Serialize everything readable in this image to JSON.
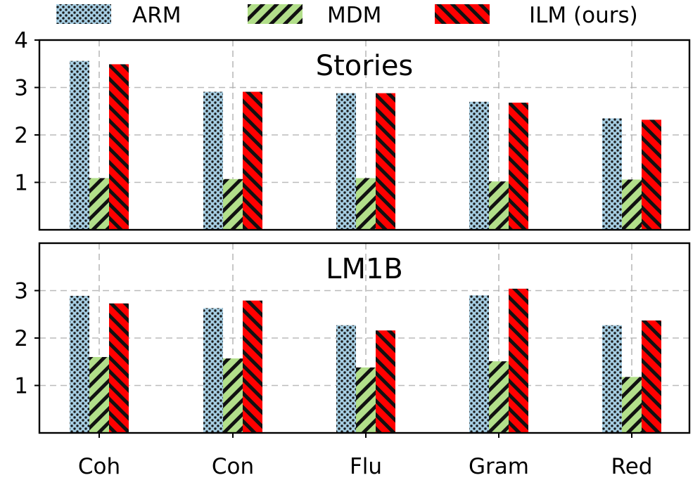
{
  "chart_data": {
    "type": "bar",
    "categories": [
      "Coh",
      "Con",
      "Flu",
      "Gram",
      "Red"
    ],
    "legend": [
      {
        "name": "ARM",
        "color": "#a6cee3",
        "pattern": "dots"
      },
      {
        "name": "MDM",
        "color": "#b2df8a",
        "pattern": "backslash"
      },
      {
        "name": "ILM (ours)",
        "color": "#ff0000",
        "pattern": "slash"
      }
    ],
    "panels": [
      {
        "title": "Stories",
        "ylim": [
          0,
          4
        ],
        "yticks": [
          1,
          2,
          3,
          4
        ],
        "ytick_labels": [
          "1",
          "2",
          "3",
          "4"
        ],
        "series": [
          {
            "name": "ARM",
            "values": [
              3.56,
              2.91,
              2.88,
              2.7,
              2.35
            ]
          },
          {
            "name": "MDM",
            "values": [
              1.09,
              1.07,
              1.09,
              1.02,
              1.06
            ]
          },
          {
            "name": "ILM (ours)",
            "values": [
              3.49,
              2.91,
              2.88,
              2.68,
              2.32
            ]
          }
        ]
      },
      {
        "title": "LM1B",
        "ylim": [
          0,
          4
        ],
        "yticks": [
          1,
          2,
          3
        ],
        "ytick_labels": [
          "1",
          "2",
          "3"
        ],
        "series": [
          {
            "name": "ARM",
            "values": [
              2.89,
              2.63,
              2.27,
              2.9,
              2.27
            ]
          },
          {
            "name": "MDM",
            "values": [
              1.6,
              1.57,
              1.38,
              1.51,
              1.18
            ]
          },
          {
            "name": "ILM (ours)",
            "values": [
              2.73,
              2.79,
              2.16,
              3.04,
              2.37
            ]
          }
        ]
      }
    ],
    "grid": true,
    "legend_position": "top"
  }
}
